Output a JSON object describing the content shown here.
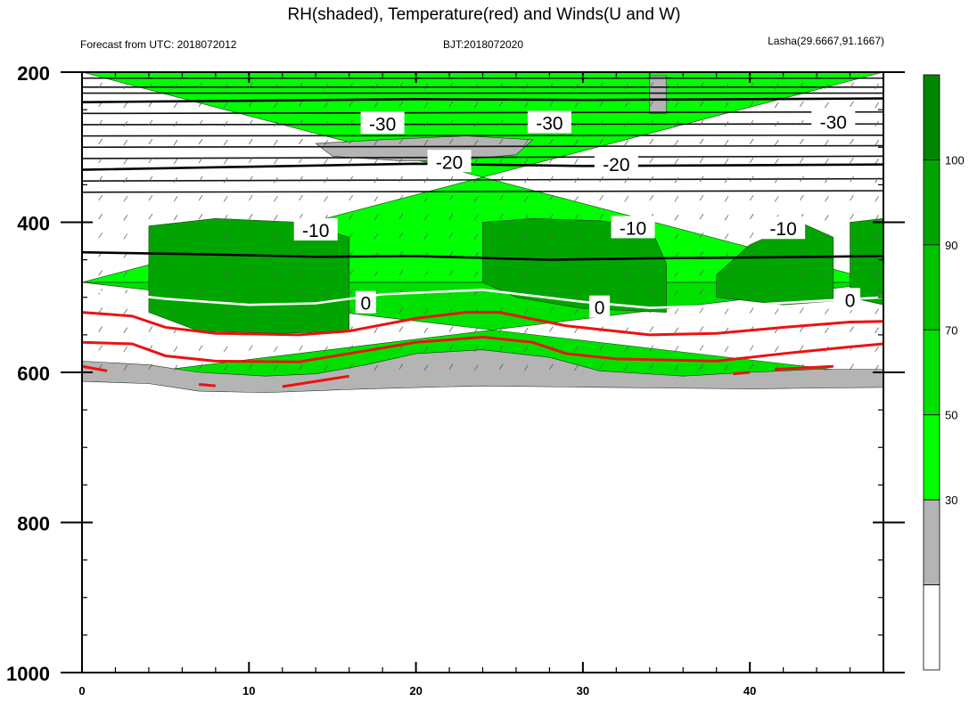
{
  "chart_data": {
    "type": "heatmap",
    "title": "RH(shaded), Temperature(red) and Winds(U and W)",
    "header_left": "Forecast from UTC: 2018072012",
    "header_center": "BJT:2018072020",
    "header_right": "Lasha(29.6667,91.1667)",
    "x_axis": {
      "ticks": [
        0,
        10,
        20,
        30,
        40
      ],
      "tick_labels": [
        "0",
        "10",
        "20",
        "30",
        "40"
      ],
      "range": [
        0,
        48
      ]
    },
    "y_axis": {
      "ticks": [
        200,
        400,
        600,
        800,
        1000
      ],
      "tick_labels": [
        "200",
        "400",
        "600",
        "800",
        "1000"
      ],
      "range": [
        200,
        1000
      ],
      "reversed": true
    },
    "colorbar": {
      "levels": [
        30,
        50,
        70,
        90,
        100
      ],
      "labels": [
        "30",
        "50",
        "70",
        "90",
        "100"
      ],
      "colors": [
        "#ffffff",
        "#b4b4b4",
        "#00ff00",
        "#00e100",
        "#00c300",
        "#00a500",
        "#008700"
      ]
    },
    "rh_fields": [
      {
        "name": "rh-50-70",
        "color": "#00e100",
        "top": [
          [
            0,
            480
          ],
          [
            48,
            480
          ]
        ],
        "bottom": [
          [
            0,
            610
          ],
          [
            4,
            610
          ],
          [
            7,
            620
          ],
          [
            11,
            625
          ],
          [
            14,
            622
          ],
          [
            17,
            600
          ],
          [
            20,
            588
          ],
          [
            24,
            585
          ],
          [
            28,
            598
          ],
          [
            31,
            612
          ],
          [
            36,
            614
          ],
          [
            40,
            608
          ],
          [
            44,
            604
          ],
          [
            48,
            604
          ]
        ]
      },
      {
        "name": "rh-70-90-upper",
        "color": "#00ff00",
        "top": [
          [
            0,
            200
          ],
          [
            48,
            200
          ]
        ],
        "bottom": [
          [
            0,
            480
          ],
          [
            48,
            480
          ]
        ]
      },
      {
        "name": "rh-90-100-blob-left",
        "color": "#00a500",
        "top": [
          [
            4,
            405
          ],
          [
            8,
            395
          ],
          [
            13,
            400
          ],
          [
            16,
            420
          ],
          [
            16,
            500
          ]
        ],
        "bottom": [
          [
            16,
            545
          ],
          [
            12,
            548
          ],
          [
            7,
            545
          ],
          [
            4,
            520
          ],
          [
            4,
            405
          ]
        ]
      },
      {
        "name": "rh-90-100-blob-mid",
        "color": "#00a500",
        "top": [
          [
            24,
            400
          ],
          [
            27,
            395
          ],
          [
            31,
            398
          ],
          [
            34,
            405
          ]
        ],
        "bottom": [
          [
            35,
            455
          ],
          [
            35,
            520
          ],
          [
            30,
            515
          ],
          [
            26,
            500
          ],
          [
            24,
            480
          ]
        ]
      },
      {
        "name": "rh-90-100-blob-right",
        "color": "#00a500",
        "top": [
          [
            40,
            430
          ],
          [
            43,
            400
          ],
          [
            45,
            420
          ]
        ],
        "bottom": [
          [
            45,
            505
          ],
          [
            42,
            510
          ],
          [
            38,
            500
          ],
          [
            38,
            470
          ]
        ]
      },
      {
        "name": "rh-90-100-edge-right",
        "color": "#00a500",
        "top": [
          [
            46,
            400
          ],
          [
            48,
            395
          ]
        ],
        "bottom": [
          [
            48,
            510
          ],
          [
            46,
            500
          ]
        ]
      },
      {
        "name": "rh-lt50-pocket-top",
        "color": "#b4b4b4",
        "top": [
          [
            14,
            295
          ],
          [
            18,
            290
          ],
          [
            23,
            285
          ],
          [
            27,
            290
          ]
        ],
        "bottom": [
          [
            26,
            310
          ],
          [
            22,
            318
          ],
          [
            19,
            318
          ],
          [
            15,
            312
          ]
        ]
      },
      {
        "name": "rh-lt50-pocket-topright",
        "color": "#b4b4b4",
        "top": [
          [
            34,
            205
          ],
          [
            35,
            205
          ]
        ],
        "bottom": [
          [
            35,
            255
          ],
          [
            34,
            255
          ]
        ]
      },
      {
        "name": "rh-lt50-ground",
        "color": "#b4b4b4",
        "top": [
          [
            0,
            585
          ],
          [
            4,
            590
          ],
          [
            7,
            600
          ],
          [
            11,
            605
          ],
          [
            14,
            602
          ],
          [
            17,
            590
          ],
          [
            20,
            575
          ],
          [
            24,
            570
          ],
          [
            28,
            580
          ],
          [
            31,
            598
          ],
          [
            36,
            605
          ],
          [
            40,
            600
          ],
          [
            44,
            596
          ],
          [
            48,
            596
          ]
        ],
        "bottom": [
          [
            48,
            620
          ],
          [
            40,
            622
          ],
          [
            31,
            620
          ],
          [
            24,
            618
          ],
          [
            17,
            622
          ],
          [
            11,
            627
          ],
          [
            7,
            625
          ],
          [
            4,
            615
          ],
          [
            0,
            612
          ]
        ]
      }
    ],
    "isotherms": [
      {
        "label": "-30",
        "color": "#000000",
        "points": [
          [
            0,
            240
          ],
          [
            10,
            238
          ],
          [
            20,
            236
          ],
          [
            30,
            237
          ],
          [
            40,
            236
          ],
          [
            48,
            235
          ]
        ],
        "label_at": [
          [
            18,
            268
          ],
          [
            28,
            267
          ],
          [
            45,
            266
          ]
        ]
      },
      {
        "label": "-20",
        "color": "#000000",
        "points": [
          [
            0,
            330
          ],
          [
            10,
            326
          ],
          [
            20,
            322
          ],
          [
            30,
            325
          ],
          [
            40,
            324
          ],
          [
            48,
            323
          ]
        ],
        "label_at": [
          [
            22,
            319
          ],
          [
            32,
            322
          ]
        ]
      },
      {
        "label": "-10",
        "color": "#000000",
        "points": [
          [
            0,
            440
          ],
          [
            8,
            443
          ],
          [
            14,
            446
          ],
          [
            20,
            445
          ],
          [
            28,
            450
          ],
          [
            34,
            448
          ],
          [
            40,
            447
          ],
          [
            48,
            445
          ]
        ],
        "label_at": [
          [
            14,
            410
          ],
          [
            33,
            407
          ],
          [
            42,
            408
          ]
        ]
      },
      {
        "label": "0",
        "color": "#ffffff",
        "points": [
          [
            0,
            490
          ],
          [
            5,
            502
          ],
          [
            10,
            510
          ],
          [
            14,
            508
          ],
          [
            18,
            496
          ],
          [
            24,
            490
          ],
          [
            30,
            506
          ],
          [
            34,
            514
          ],
          [
            40,
            510
          ],
          [
            44,
            505
          ],
          [
            48,
            500
          ]
        ],
        "label_at": [
          [
            17,
            507
          ],
          [
            31,
            513
          ],
          [
            46,
            503
          ]
        ]
      },
      {
        "label": "",
        "color": "#ee1111",
        "points": [
          [
            0,
            520
          ],
          [
            3,
            525
          ],
          [
            5,
            540
          ],
          [
            8,
            548
          ],
          [
            13,
            550
          ],
          [
            16,
            545
          ],
          [
            20,
            528
          ],
          [
            23,
            520
          ],
          [
            25,
            520
          ],
          [
            29,
            538
          ],
          [
            34,
            550
          ],
          [
            38,
            548
          ],
          [
            42,
            540
          ],
          [
            46,
            533
          ],
          [
            48,
            532
          ]
        ],
        "label_at": []
      },
      {
        "label": "",
        "color": "#ee1111",
        "points": [
          [
            0,
            560
          ],
          [
            3,
            562
          ],
          [
            5,
            578
          ],
          [
            8,
            585
          ],
          [
            13,
            586
          ],
          [
            16,
            575
          ],
          [
            20,
            560
          ],
          [
            24,
            553
          ],
          [
            27,
            560
          ],
          [
            29,
            575
          ],
          [
            32,
            582
          ],
          [
            38,
            585
          ],
          [
            42,
            575
          ],
          [
            46,
            566
          ],
          [
            48,
            562
          ]
        ],
        "label_at": []
      }
    ],
    "black_lines_extra": [
      [
        [
          0,
          208
        ],
        [
          48,
          208
        ]
      ],
      [
        [
          0,
          220
        ],
        [
          48,
          220
        ]
      ],
      [
        [
          0,
          228
        ],
        [
          48,
          228
        ]
      ],
      [
        [
          0,
          255
        ],
        [
          48,
          253
        ]
      ],
      [
        [
          0,
          270
        ],
        [
          48,
          269
        ]
      ],
      [
        [
          0,
          285
        ],
        [
          48,
          284
        ]
      ],
      [
        [
          0,
          300
        ],
        [
          48,
          298
        ]
      ],
      [
        [
          0,
          315
        ],
        [
          48,
          312
        ]
      ],
      [
        [
          0,
          345
        ],
        [
          48,
          342
        ]
      ],
      [
        [
          0,
          360
        ],
        [
          48,
          358
        ]
      ]
    ]
  }
}
